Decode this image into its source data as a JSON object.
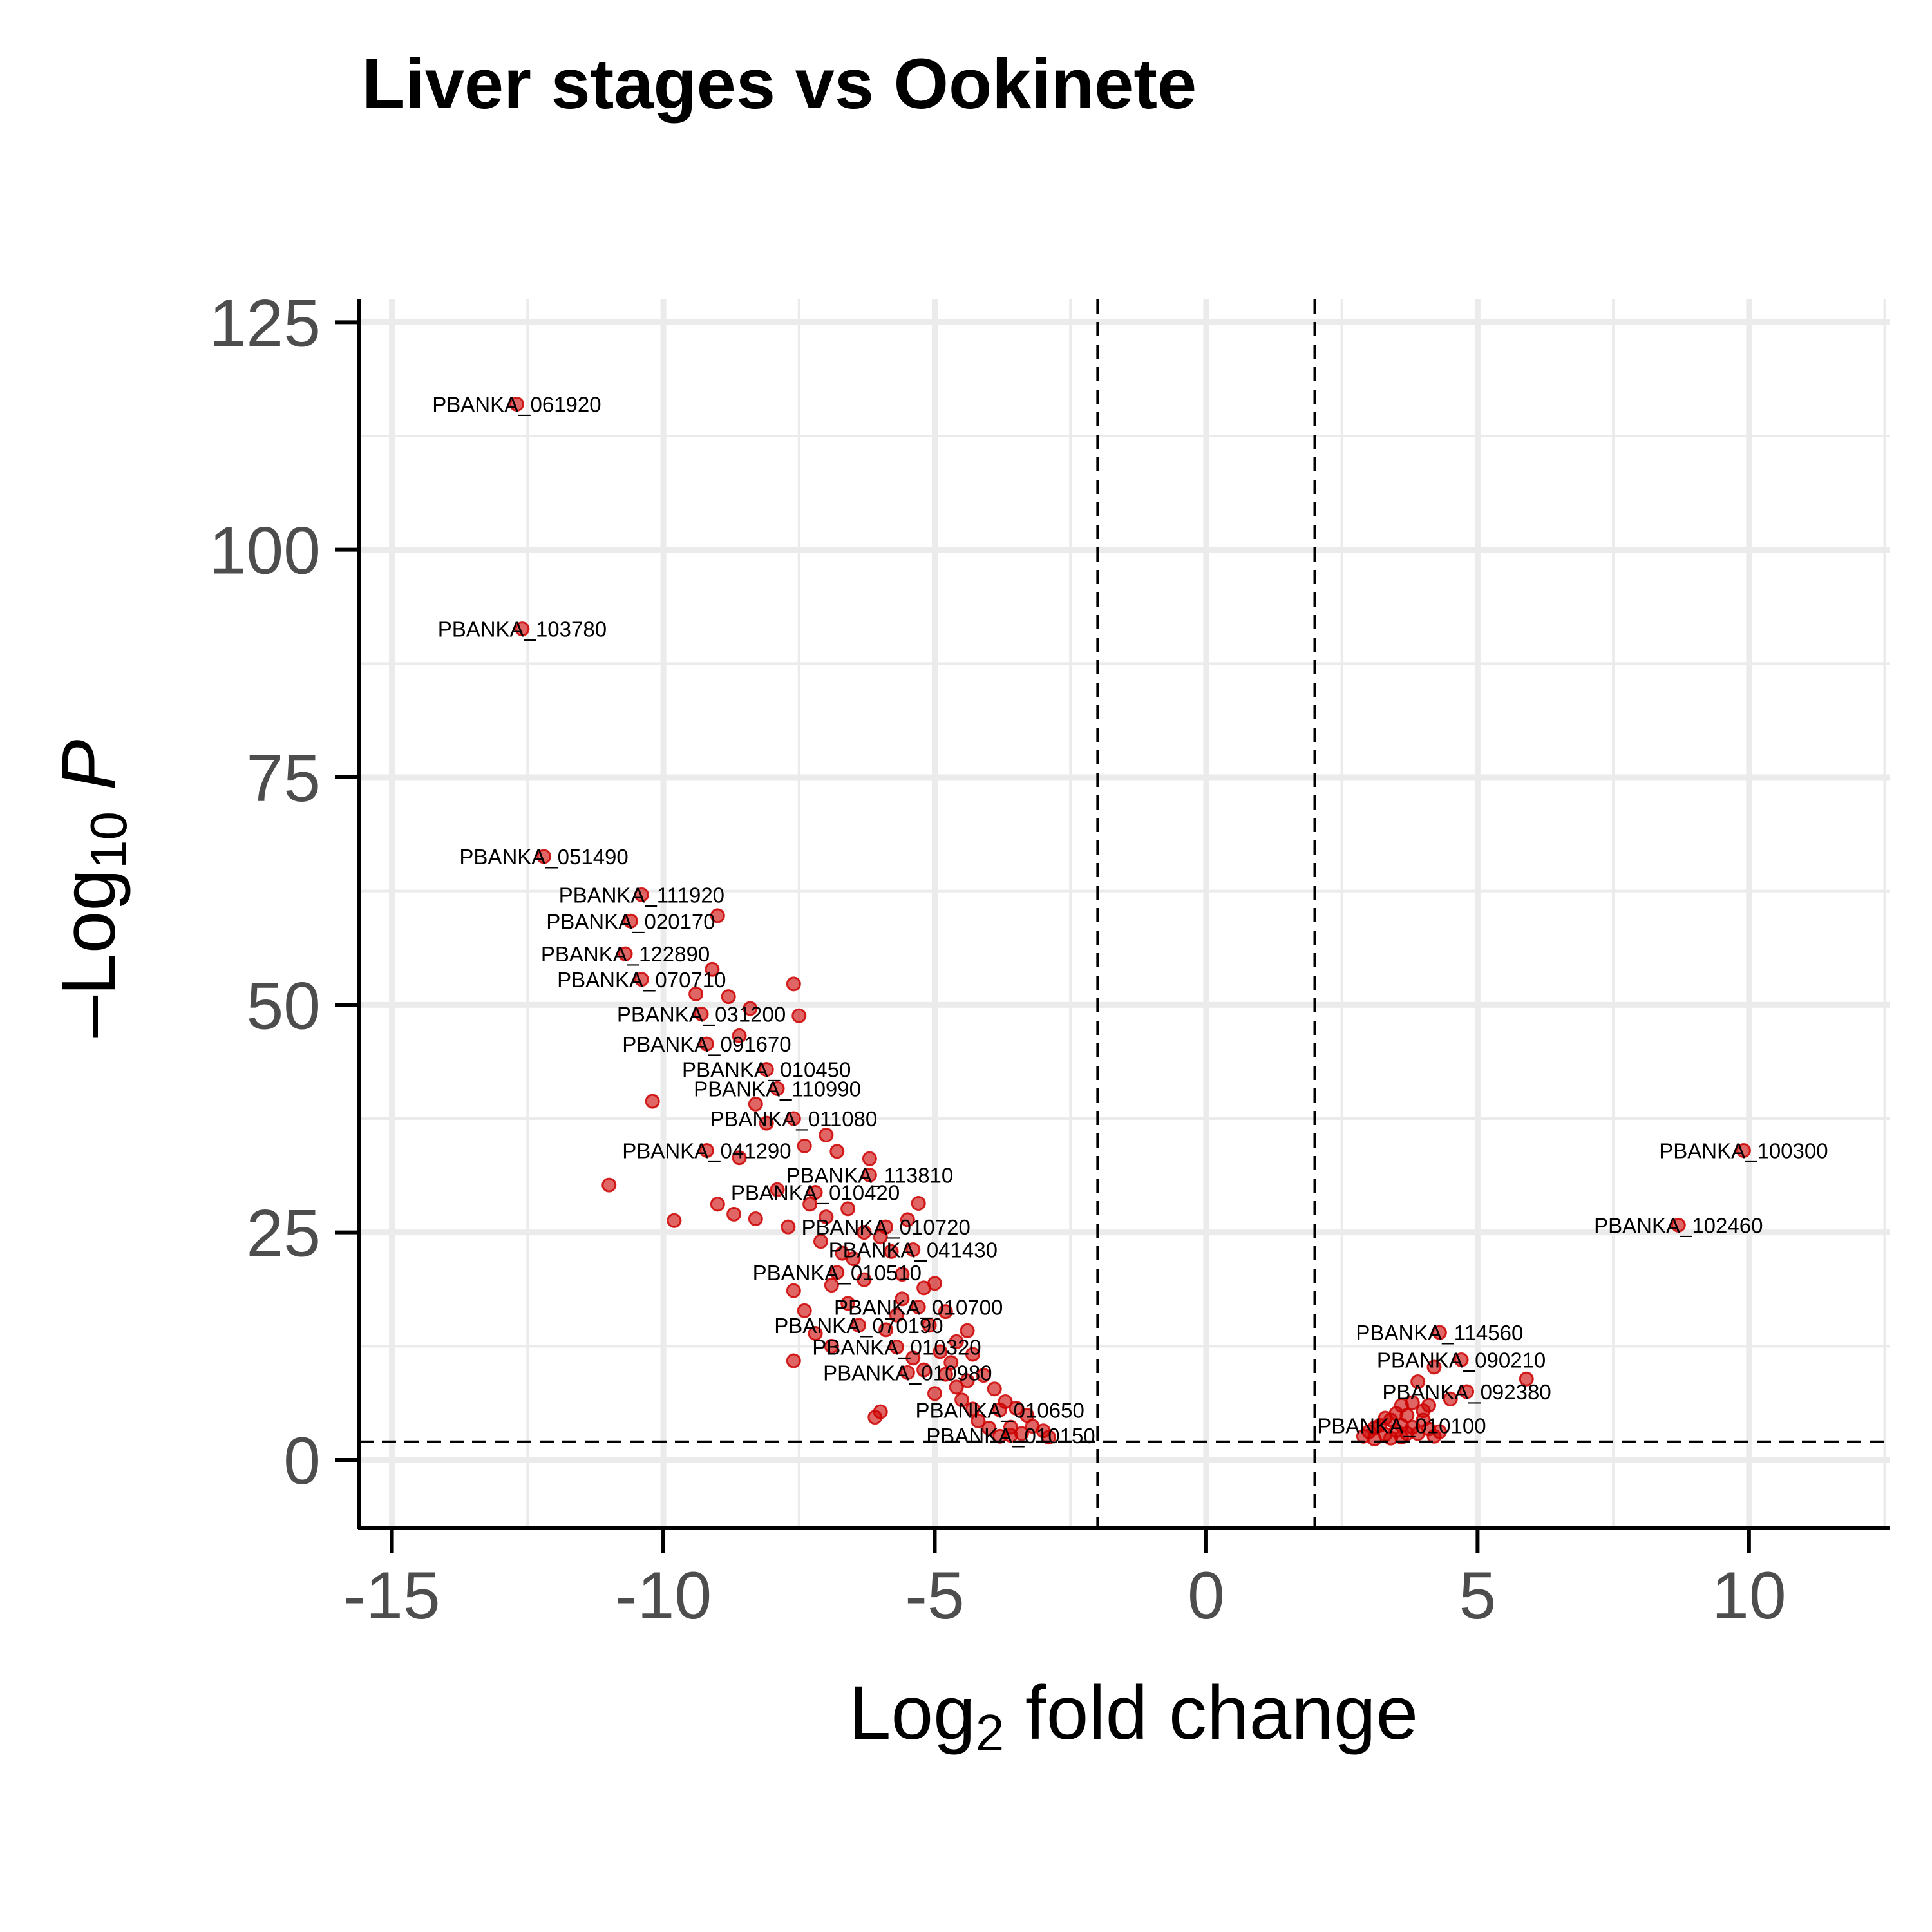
{
  "chart_data": {
    "type": "scatter",
    "title": "Liver stages vs Ookinete",
    "xlabel": {
      "base": "Log",
      "sub": "2",
      "rest": " fold change"
    },
    "ylabel": {
      "prefix": "–Log",
      "sub": "10",
      "rest": " P"
    },
    "xlim": [
      -15.6,
      12.6
    ],
    "ylim": [
      -7.5,
      127.5
    ],
    "x_ticks": [
      -15,
      -10,
      -5,
      0,
      5,
      10
    ],
    "x_tick_labels": [
      "-15",
      "-10",
      "-5",
      "0",
      "5",
      "10"
    ],
    "y_ticks": [
      0,
      25,
      50,
      75,
      100,
      125
    ],
    "y_tick_labels": [
      "0",
      "25",
      "50",
      "75",
      "100",
      "125"
    ],
    "grid": true,
    "fc_cutoff": [
      -2,
      2
    ],
    "p_cutoff": 2,
    "point_color": "#cc0000",
    "labeled_points": [
      {
        "x": -12.7,
        "y": 116,
        "label": "PBANKA_061920"
      },
      {
        "x": -12.6,
        "y": 91.3,
        "label": "PBANKA_103780"
      },
      {
        "x": -12.2,
        "y": 66.3,
        "label": "PBANKA_051490"
      },
      {
        "x": -10.4,
        "y": 62.1,
        "label": "PBANKA_111920"
      },
      {
        "x": -10.6,
        "y": 59.2,
        "label": "PBANKA_020170"
      },
      {
        "x": -10.7,
        "y": 55.6,
        "label": "PBANKA_122890"
      },
      {
        "x": -10.4,
        "y": 52.8,
        "label": "PBANKA_070710"
      },
      {
        "x": -9.3,
        "y": 49.0,
        "label": "PBANKA_031200"
      },
      {
        "x": -9.2,
        "y": 45.7,
        "label": "PBANKA_091670"
      },
      {
        "x": -8.1,
        "y": 42.9,
        "label": "PBANKA_010450"
      },
      {
        "x": -7.9,
        "y": 40.8,
        "label": "PBANKA_110990"
      },
      {
        "x": -7.6,
        "y": 37.5,
        "label": "PBANKA_011080"
      },
      {
        "x": -9.2,
        "y": 34.0,
        "label": "PBANKA_041290"
      },
      {
        "x": -6.2,
        "y": 31.3,
        "label": "PBANKA_113810"
      },
      {
        "x": -7.2,
        "y": 29.4,
        "label": "PBANKA_010420"
      },
      {
        "x": -5.9,
        "y": 25.6,
        "label": "PBANKA_010720"
      },
      {
        "x": -5.4,
        "y": 23.1,
        "label": "PBANKA_041430"
      },
      {
        "x": -6.8,
        "y": 20.6,
        "label": "PBANKA_010510"
      },
      {
        "x": -5.3,
        "y": 16.8,
        "label": "PBANKA_010700"
      },
      {
        "x": -6.4,
        "y": 14.8,
        "label": "PBANKA_070190"
      },
      {
        "x": -5.7,
        "y": 12.4,
        "label": "PBANKA_010320"
      },
      {
        "x": -5.5,
        "y": 9.6,
        "label": "PBANKA_010980"
      },
      {
        "x": -3.8,
        "y": 5.5,
        "label": "PBANKA_010650"
      },
      {
        "x": -3.6,
        "y": 2.7,
        "label": "PBANKA_010150"
      },
      {
        "x": 9.9,
        "y": 34.0,
        "label": "PBANKA_100300"
      },
      {
        "x": 8.7,
        "y": 25.8,
        "label": "PBANKA_102460"
      },
      {
        "x": 4.3,
        "y": 14.0,
        "label": "PBANKA_114560"
      },
      {
        "x": 4.7,
        "y": 11.0,
        "label": "PBANKA_090210"
      },
      {
        "x": 4.8,
        "y": 7.5,
        "label": "PBANKA_092380"
      },
      {
        "x": 3.6,
        "y": 3.8,
        "label": "PBANKA_010100"
      }
    ],
    "other_points": [
      [
        -11.0,
        30.2
      ],
      [
        -10.2,
        39.4
      ],
      [
        -9.8,
        26.3
      ],
      [
        -9.4,
        51.2
      ],
      [
        -9.1,
        53.9
      ],
      [
        -9.0,
        59.8
      ],
      [
        -8.8,
        50.9
      ],
      [
        -8.6,
        46.6
      ],
      [
        -8.4,
        49.6
      ],
      [
        -8.3,
        39.1
      ],
      [
        -8.1,
        37.0
      ],
      [
        -7.6,
        52.3
      ],
      [
        -7.5,
        48.8
      ],
      [
        -7.4,
        34.5
      ],
      [
        -7.0,
        35.7
      ],
      [
        -6.8,
        33.9
      ],
      [
        -6.6,
        27.6
      ],
      [
        -6.2,
        33.1
      ],
      [
        -8.6,
        33.2
      ],
      [
        -8.7,
        27.0
      ],
      [
        -9.0,
        28.1
      ],
      [
        -8.3,
        26.5
      ],
      [
        -7.9,
        29.7
      ],
      [
        -7.7,
        25.6
      ],
      [
        -7.3,
        28.1
      ],
      [
        -7.0,
        26.7
      ],
      [
        -6.5,
        22.1
      ],
      [
        -6.3,
        25.0
      ],
      [
        -6.0,
        24.5
      ],
      [
        -5.8,
        22.9
      ],
      [
        -5.5,
        26.4
      ],
      [
        -5.3,
        28.2
      ],
      [
        -5.6,
        20.4
      ],
      [
        -5.2,
        18.9
      ],
      [
        -5.0,
        19.4
      ],
      [
        -4.8,
        16.3
      ],
      [
        -4.4,
        14.2
      ],
      [
        -7.6,
        18.6
      ],
      [
        -7.4,
        16.4
      ],
      [
        -7.2,
        13.9
      ],
      [
        -7.6,
        10.9
      ],
      [
        -6.9,
        12.5
      ],
      [
        -6.1,
        4.7
      ],
      [
        -6.0,
        5.3
      ],
      [
        -4.6,
        13.0
      ],
      [
        -4.3,
        11.6
      ],
      [
        -4.1,
        9.3
      ],
      [
        -3.9,
        7.8
      ],
      [
        -3.7,
        6.4
      ],
      [
        -3.5,
        5.7
      ],
      [
        -3.3,
        4.9
      ],
      [
        -3.2,
        3.7
      ],
      [
        -3.0,
        3.2
      ],
      [
        -2.9,
        2.5
      ],
      [
        -4.8,
        9.4
      ],
      [
        -5.0,
        7.3
      ],
      [
        -4.5,
        6.6
      ],
      [
        -4.2,
        4.3
      ],
      [
        -4.0,
        3.5
      ],
      [
        -3.8,
        2.6
      ],
      [
        -5.4,
        11.2
      ],
      [
        -5.9,
        14.3
      ],
      [
        -6.6,
        17.2
      ],
      [
        -6.9,
        19.2
      ],
      [
        -4.9,
        11.9
      ],
      [
        -4.6,
        8.0
      ],
      [
        -4.3,
        5.6
      ],
      [
        -3.6,
        3.6
      ],
      [
        -3.4,
        2.9
      ],
      [
        -5.2,
        9.9
      ],
      [
        -5.7,
        15.9
      ],
      [
        -6.3,
        19.8
      ],
      [
        -6.7,
        22.7
      ],
      [
        -7.1,
        24.0
      ],
      [
        -5.6,
        17.7
      ],
      [
        -5.1,
        14.8
      ],
      [
        -4.7,
        10.7
      ],
      [
        -4.4,
        8.7
      ],
      [
        2.9,
        2.6
      ],
      [
        3.0,
        3.1
      ],
      [
        3.1,
        2.3
      ],
      [
        3.2,
        3.8
      ],
      [
        3.3,
        2.8
      ],
      [
        3.4,
        4.4
      ],
      [
        3.5,
        3.2
      ],
      [
        3.6,
        2.5
      ],
      [
        3.7,
        4.9
      ],
      [
        3.8,
        3.6
      ],
      [
        3.9,
        2.9
      ],
      [
        4.0,
        5.4
      ],
      [
        4.1,
        3.4
      ],
      [
        4.2,
        2.6
      ],
      [
        3.3,
        4.6
      ],
      [
        3.5,
        5.1
      ],
      [
        3.8,
        6.3
      ],
      [
        3.9,
        8.6
      ],
      [
        4.2,
        10.2
      ],
      [
        4.5,
        6.7
      ],
      [
        4.3,
        3.1
      ],
      [
        3.6,
        6.0
      ],
      [
        4.0,
        4.4
      ],
      [
        5.9,
        8.9
      ],
      [
        3.1,
        3.5
      ],
      [
        3.4,
        2.4
      ],
      [
        3.7,
        2.9
      ],
      [
        4.1,
        6.0
      ]
    ]
  }
}
